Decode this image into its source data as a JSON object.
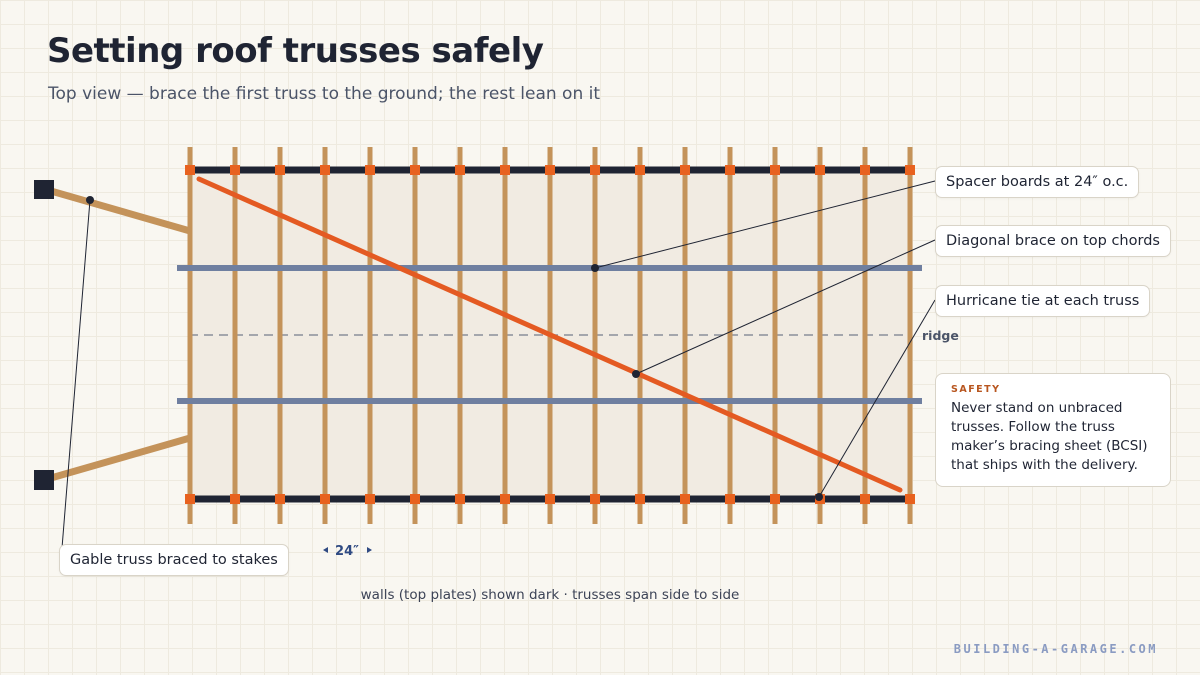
{
  "title": "Setting roof trusses safely",
  "subtitle": "Top view — brace the first truss to the ground; the rest lean on it",
  "labels": {
    "ridge": "ridge",
    "spacing": "24″"
  },
  "callouts": {
    "spacers": "Spacer boards at 24″ o.c.",
    "diagonal": "Diagonal brace on top chords",
    "hurricane": "Hurricane tie at each truss",
    "gable": "Gable truss braced to stakes"
  },
  "safety": {
    "heading": "SAFETY",
    "text": "Never stand on unbraced trusses. Follow the truss maker’s bracing sheet (BCSI) that ships with the delivery."
  },
  "footnote": "walls (top plates) shown dark · trusses span side to side",
  "site": "BUILDING-A-GARAGE.COM",
  "truss_count": 17,
  "colors": {
    "wall": "#1f2433",
    "truss": "#c4935a",
    "tie": "#e8621f",
    "spacer": "#6f7fa0",
    "diagonal": "#e45a22",
    "fill": "#f1ebe2",
    "ridge": "#8a8f99"
  }
}
